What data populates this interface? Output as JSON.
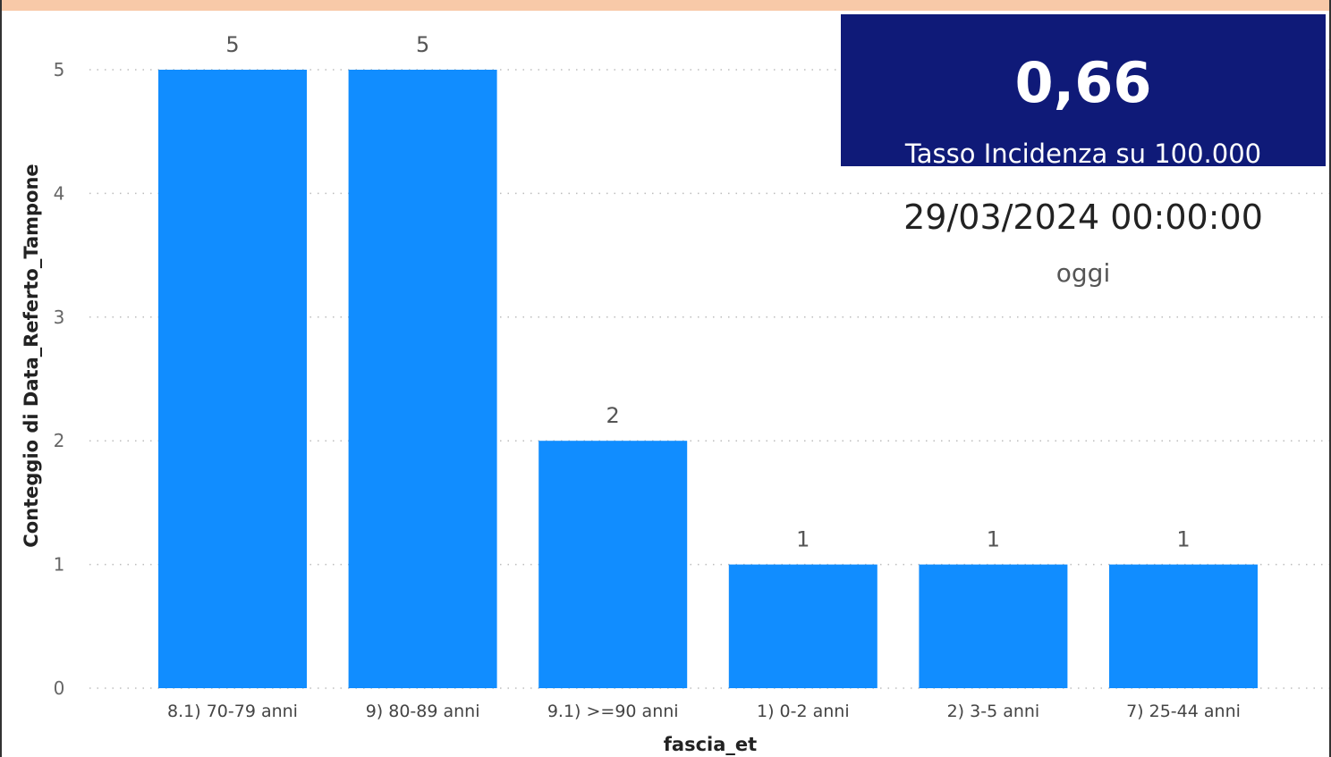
{
  "chart_data": {
    "type": "bar",
    "categories": [
      "8.1) 70-79 anni",
      "9) 80-89 anni",
      "9.1) >=90 anni",
      "1) 0-2 anni",
      "2) 3-5 anni",
      "7) 25-44 anni"
    ],
    "values": [
      5,
      5,
      2,
      1,
      1,
      1
    ],
    "y_ticks": [
      "0",
      "1",
      "2",
      "3",
      "4",
      "5"
    ],
    "xlabel": "fascia_et",
    "ylabel": "Conteggio di Data_Referto_Tampone",
    "ylim": [
      0,
      5
    ],
    "grid": "horizontal dotted",
    "bar_color": "#118dff"
  },
  "kpi": {
    "value": "0,66",
    "label": "Tasso Incidenza su 100.000",
    "background": "#0f1a78"
  },
  "date_card": {
    "value": "29/03/2024 00:00:00",
    "caption": "oggi"
  },
  "colors": {
    "top_band": "#f8c9a8",
    "bar": "#118dff"
  }
}
